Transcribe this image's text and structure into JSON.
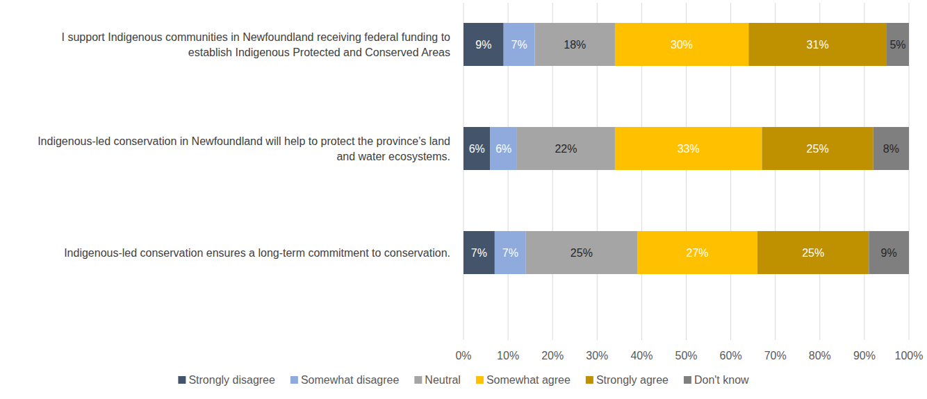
{
  "chart_data": {
    "type": "bar",
    "orientation": "horizontal",
    "stacked": true,
    "data_labels": true,
    "grid": true,
    "legend": "bottom",
    "categories": [
      "I support Indigenous communities in Newfoundland receiving federal funding to establish Indigenous Protected and Conserved Areas",
      "Indigenous-led conservation in Newfoundland will help to protect the province’s land and water ecosystems.",
      "Indigenous-led conservation ensures a long-term commitment to conservation."
    ],
    "series": [
      {
        "name": "Strongly disagree",
        "color": "#44546a",
        "values": [
          9,
          6,
          7
        ],
        "value_labels": [
          "9%",
          "6%",
          "7%"
        ]
      },
      {
        "name": "Somewhat disagree",
        "color": "#8faadc",
        "values": [
          7,
          6,
          7
        ],
        "value_labels": [
          "7%",
          "6%",
          "7%"
        ]
      },
      {
        "name": "Neutral",
        "color": "#a5a5a5",
        "values": [
          18,
          22,
          25
        ],
        "value_labels": [
          "18%",
          "22%",
          "25%"
        ]
      },
      {
        "name": "Somewhat agree",
        "color": "#ffc000",
        "values": [
          30,
          33,
          27
        ],
        "value_labels": [
          "30%",
          "33%",
          "27%"
        ]
      },
      {
        "name": "Strongly agree",
        "color": "#bf9000",
        "values": [
          31,
          25,
          25
        ],
        "value_labels": [
          "31%",
          "25%",
          "25%"
        ]
      },
      {
        "name": "Don't know",
        "color": "#7f7f7f",
        "values": [
          5,
          8,
          9
        ],
        "value_labels": [
          "5%",
          "8%",
          "9%"
        ]
      }
    ],
    "xlim": [
      0,
      100
    ],
    "xticks": [
      {
        "value": 0,
        "label": "0%"
      },
      {
        "value": 10,
        "label": "10%"
      },
      {
        "value": 20,
        "label": "20%"
      },
      {
        "value": 30,
        "label": "30%"
      },
      {
        "value": 40,
        "label": "40%"
      },
      {
        "value": 50,
        "label": "50%"
      },
      {
        "value": 60,
        "label": "60%"
      },
      {
        "value": 70,
        "label": "70%"
      },
      {
        "value": 80,
        "label": "80%"
      },
      {
        "value": 90,
        "label": "90%"
      },
      {
        "value": 100,
        "label": "100%"
      }
    ]
  }
}
